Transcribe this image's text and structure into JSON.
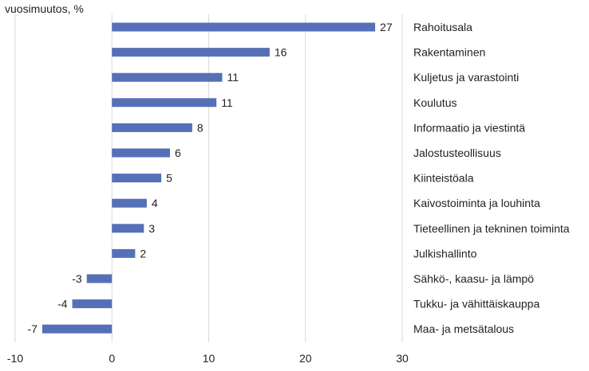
{
  "chart_data": {
    "type": "bar",
    "orientation": "horizontal",
    "ylabel": "vuosimuutos, %",
    "categories": [
      "Rahoitusala",
      "Rakentaminen",
      "Kuljetus ja varastointi",
      "Koulutus",
      "Informaatio ja viestintä",
      "Jalostusteollisuus",
      "Kiinteistöala",
      "Kaivostoiminta ja louhinta",
      "Tieteellinen ja tekninen toiminta",
      "Julkishallinto",
      "Sähkö-, kaasu- ja lämpö",
      "Tukku- ja vähittäiskauppa",
      "Maa- ja metsätalous"
    ],
    "values": [
      27.2,
      16.3,
      11.4,
      10.8,
      8.3,
      6.0,
      5.1,
      3.6,
      3.3,
      2.4,
      -2.6,
      -4.1,
      -7.2
    ],
    "data_labels": [
      "27",
      "16",
      "11",
      "11",
      "8",
      "6",
      "5",
      "4",
      "3",
      "2",
      "-3",
      "-4",
      "-7"
    ],
    "xlim": [
      -10,
      30
    ],
    "x_ticks": [
      -10,
      0,
      10,
      20,
      30
    ],
    "x_tick_labels": [
      "-10",
      "0",
      "10",
      "20",
      "30"
    ],
    "grid": "vertical",
    "bar_color": "#5670b8",
    "gridline_color": "#d9d9d9"
  }
}
